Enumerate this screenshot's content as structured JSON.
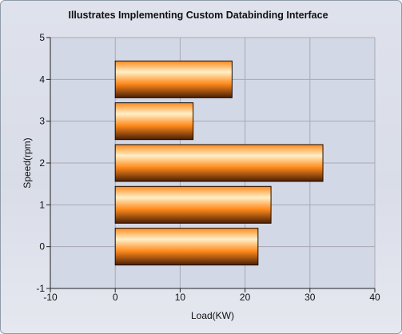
{
  "chart_data": {
    "type": "bar",
    "orientation": "horizontal",
    "title": "Illustrates Implementing Custom Databinding Interface",
    "xlabel": "Load(KW)",
    "ylabel": "Speed(rpm)",
    "xlim": [
      -10,
      40
    ],
    "ylim": [
      -1,
      5
    ],
    "x_ticks": [
      -10,
      0,
      10,
      20,
      30,
      40
    ],
    "y_ticks": [
      -1,
      0,
      1,
      2,
      3,
      4,
      5
    ],
    "grid": true,
    "legend": "none",
    "bars": [
      {
        "y": 0,
        "value": 22
      },
      {
        "y": 1,
        "value": 24
      },
      {
        "y": 2,
        "value": 32
      },
      {
        "y": 3,
        "value": 12
      },
      {
        "y": 4,
        "value": 18
      }
    ],
    "colors": {
      "bar_highlight": "#fff0c8",
      "bar_mid": "#ff8a1c",
      "bar_dark": "#4a1f05",
      "plot_background": "#d3d8e6",
      "grid": "#a9a9b3"
    }
  }
}
